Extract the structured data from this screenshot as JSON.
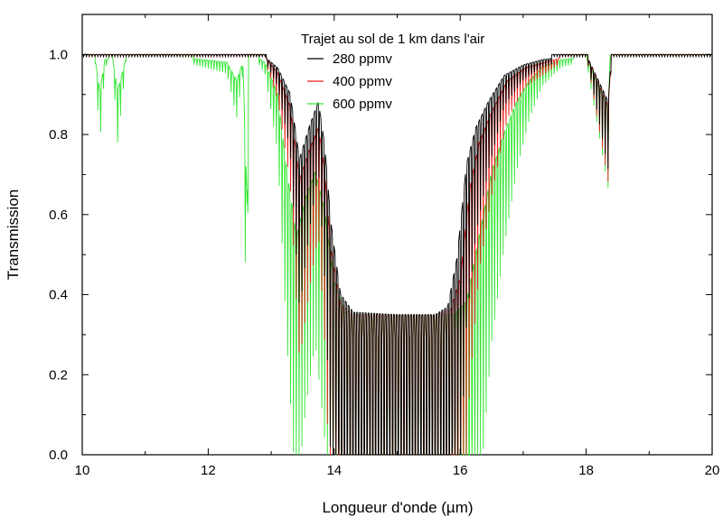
{
  "chart_data": {
    "type": "line",
    "title": "",
    "xlabel": "Longueur d'onde (µm)",
    "ylabel": "Transmission",
    "xlim": [
      10,
      20
    ],
    "ylim": [
      0,
      1.1
    ],
    "x_ticks": [
      "10",
      "12",
      "14",
      "16",
      "18",
      "20"
    ],
    "y_ticks": [
      "0.0",
      "0.2",
      "0.4",
      "0.6",
      "0.8",
      "1.0"
    ],
    "grid": false,
    "legend": {
      "title": "Trajet au sol de 1 km dans l'air",
      "position": "top-center"
    },
    "series": [
      {
        "name": "280 ppmv",
        "color": "#000000",
        "x": [
          10.0,
          11.5,
          12.6,
          12.9,
          13.1,
          13.3,
          13.45,
          13.6,
          13.75,
          13.85,
          13.95,
          14.1,
          14.3,
          15.0,
          15.6,
          15.8,
          15.95,
          16.1,
          16.25,
          16.45,
          16.7,
          17.0,
          17.3,
          17.6,
          18.0,
          18.35,
          18.4,
          18.5,
          20.0
        ],
        "y": [
          1.0,
          1.0,
          1.0,
          0.99,
          0.95,
          0.85,
          0.6,
          0.72,
          0.82,
          0.65,
          0.35,
          0.08,
          0.01,
          0.0,
          0.0,
          0.03,
          0.22,
          0.58,
          0.72,
          0.82,
          0.92,
          0.96,
          0.98,
          0.99,
          1.0,
          0.82,
          1.0,
          1.0,
          1.0
        ]
      },
      {
        "name": "400 ppmv",
        "color": "#e8201c",
        "x": [
          10.0,
          11.5,
          12.6,
          12.9,
          13.1,
          13.3,
          13.45,
          13.6,
          13.75,
          13.85,
          13.95,
          14.1,
          14.3,
          15.0,
          15.6,
          15.85,
          16.0,
          16.15,
          16.3,
          16.5,
          16.75,
          17.05,
          17.35,
          17.65,
          18.0,
          18.35,
          18.4,
          18.5,
          20.0
        ],
        "y": [
          1.0,
          1.0,
          1.0,
          0.99,
          0.93,
          0.8,
          0.52,
          0.63,
          0.72,
          0.55,
          0.25,
          0.04,
          0.0,
          0.0,
          0.0,
          0.02,
          0.14,
          0.48,
          0.66,
          0.78,
          0.9,
          0.95,
          0.97,
          0.99,
          1.0,
          0.8,
          1.0,
          1.0,
          1.0
        ]
      },
      {
        "name": "600 ppmv",
        "color": "#33e633",
        "x": [
          10.0,
          10.2,
          10.28,
          10.36,
          10.48,
          10.56,
          10.7,
          11.2,
          12.3,
          12.45,
          12.55,
          12.62,
          12.64,
          12.7,
          12.9,
          13.1,
          13.25,
          13.4,
          13.55,
          13.7,
          13.85,
          14.0,
          14.2,
          15.0,
          15.9,
          16.1,
          16.3,
          16.5,
          16.7,
          16.9,
          17.1,
          17.3,
          17.6,
          18.0,
          18.35,
          18.38,
          18.45,
          20.0
        ],
        "y": [
          1.0,
          0.99,
          0.86,
          0.98,
          0.99,
          0.86,
          0.99,
          1.0,
          0.97,
          0.9,
          0.97,
          0.42,
          0.99,
          1.0,
          0.97,
          0.85,
          0.55,
          0.3,
          0.45,
          0.55,
          0.4,
          0.12,
          0.0,
          0.0,
          0.0,
          0.05,
          0.3,
          0.55,
          0.7,
          0.82,
          0.9,
          0.95,
          0.98,
          0.99,
          0.79,
          0.99,
          1.0,
          1.0
        ]
      }
    ]
  }
}
